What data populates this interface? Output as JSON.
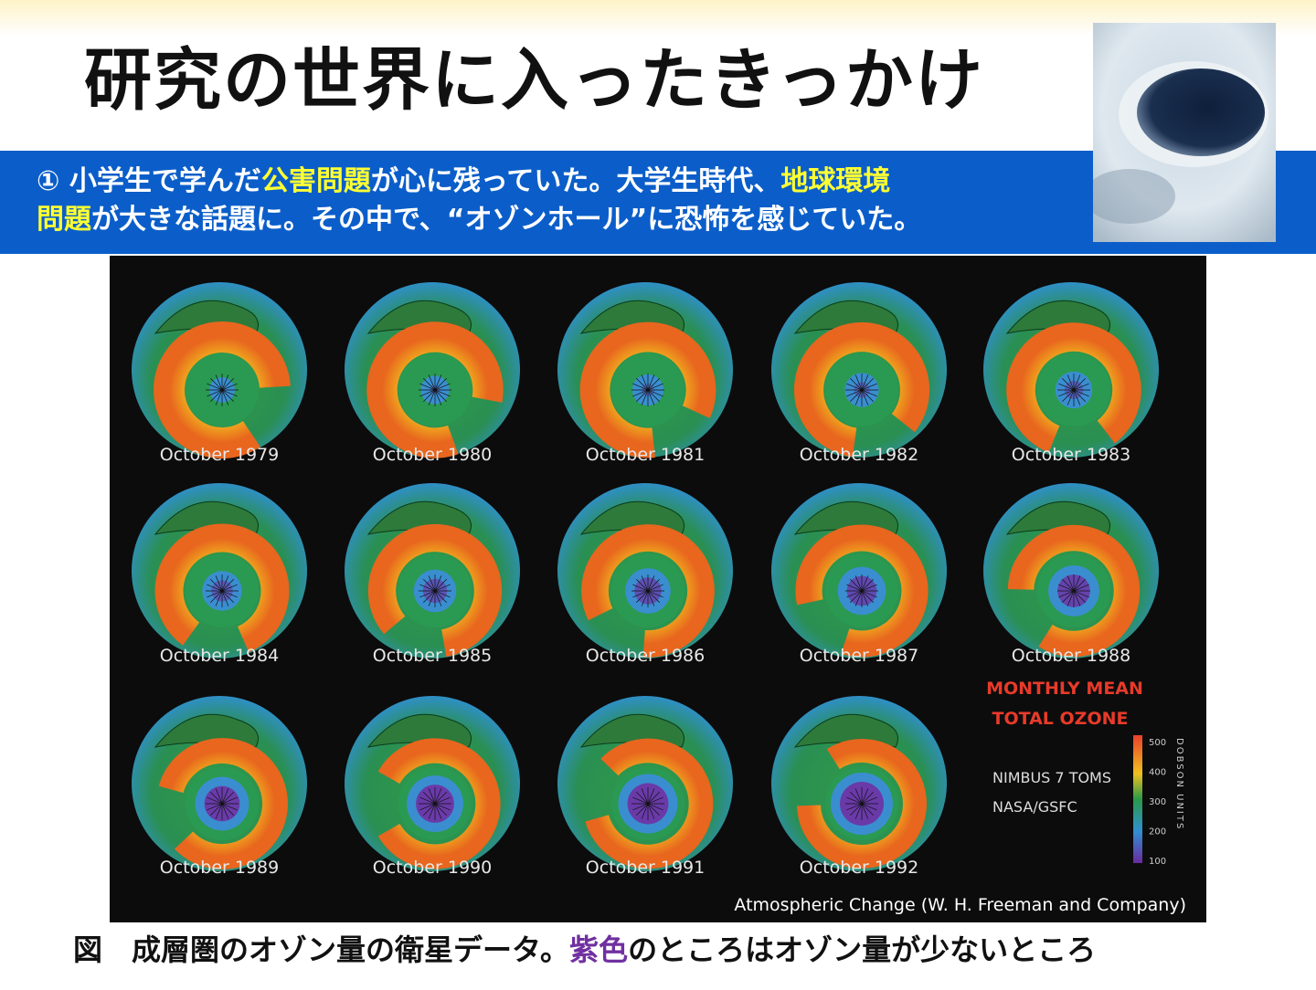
{
  "header": {
    "title": "研究の世界に入ったきっかけ"
  },
  "banner": {
    "lines": [
      [
        {
          "text": "① 小学生で学んだ"
        },
        {
          "text": "公害問題",
          "color": "#ffff33"
        },
        {
          "text": "が心に残っていた。大学生時代、"
        },
        {
          "text": "地球環境",
          "color": "#ffff33"
        }
      ],
      [
        {
          "text": "問題",
          "color": "#ffff33"
        },
        {
          "text": "が大きな話題に。その中で、“オゾンホール”に恐怖を感じていた。"
        }
      ]
    ]
  },
  "figure": {
    "panels": [
      "October 1979",
      "October 1980",
      "October 1981",
      "October 1982",
      "October 1983",
      "October 1984",
      "October 1985",
      "October 1986",
      "October 1987",
      "October 1988",
      "October 1989",
      "October 1990",
      "October 1991",
      "October 1992"
    ],
    "legend": {
      "title_lines": [
        "MONTHLY MEAN",
        "TOTAL OZONE"
      ],
      "source_lines": [
        "NIMBUS 7 TOMS",
        "NASA/GSFC"
      ],
      "scale_ticks": [
        "500",
        "400",
        "300",
        "200",
        "100"
      ],
      "scale_label": "DOBSON UNITS"
    },
    "credit": "Atmospheric Change (W. H. Freeman and Company)"
  },
  "caption": [
    {
      "text": "図　成層圏のオゾン量の衛星データ。"
    },
    {
      "text": "紫色",
      "color": "#7030a0"
    },
    {
      "text": "のところはオゾン量が少ないところ"
    }
  ]
}
